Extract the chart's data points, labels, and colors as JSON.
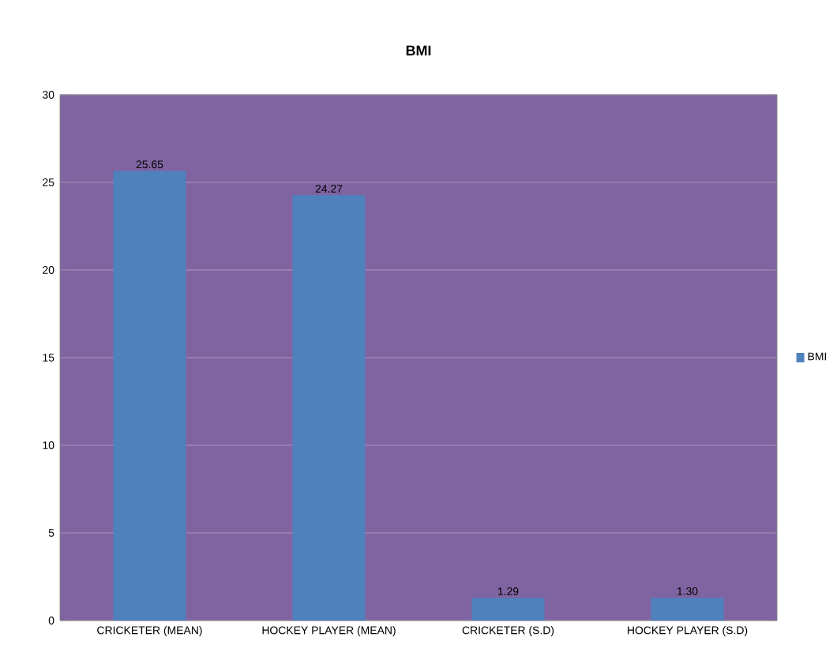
{
  "chart_data": {
    "type": "bar",
    "title": "BMI",
    "categories": [
      "CRICKETER (MEAN)",
      "HOCKEY PLAYER (MEAN)",
      "CRICKETER (S.D)",
      "HOCKEY PLAYER (S.D)"
    ],
    "series": [
      {
        "name": "BMI",
        "color": "#4f81bd",
        "values": [
          25.65,
          24.27,
          1.29,
          1.3
        ],
        "value_labels": [
          "25.65",
          "24.27",
          "1.29",
          "1.30"
        ]
      }
    ],
    "ylim": [
      0,
      30
    ],
    "yticks": [
      0,
      5,
      10,
      15,
      20,
      25,
      30
    ],
    "grid": "y",
    "legend": "right"
  }
}
